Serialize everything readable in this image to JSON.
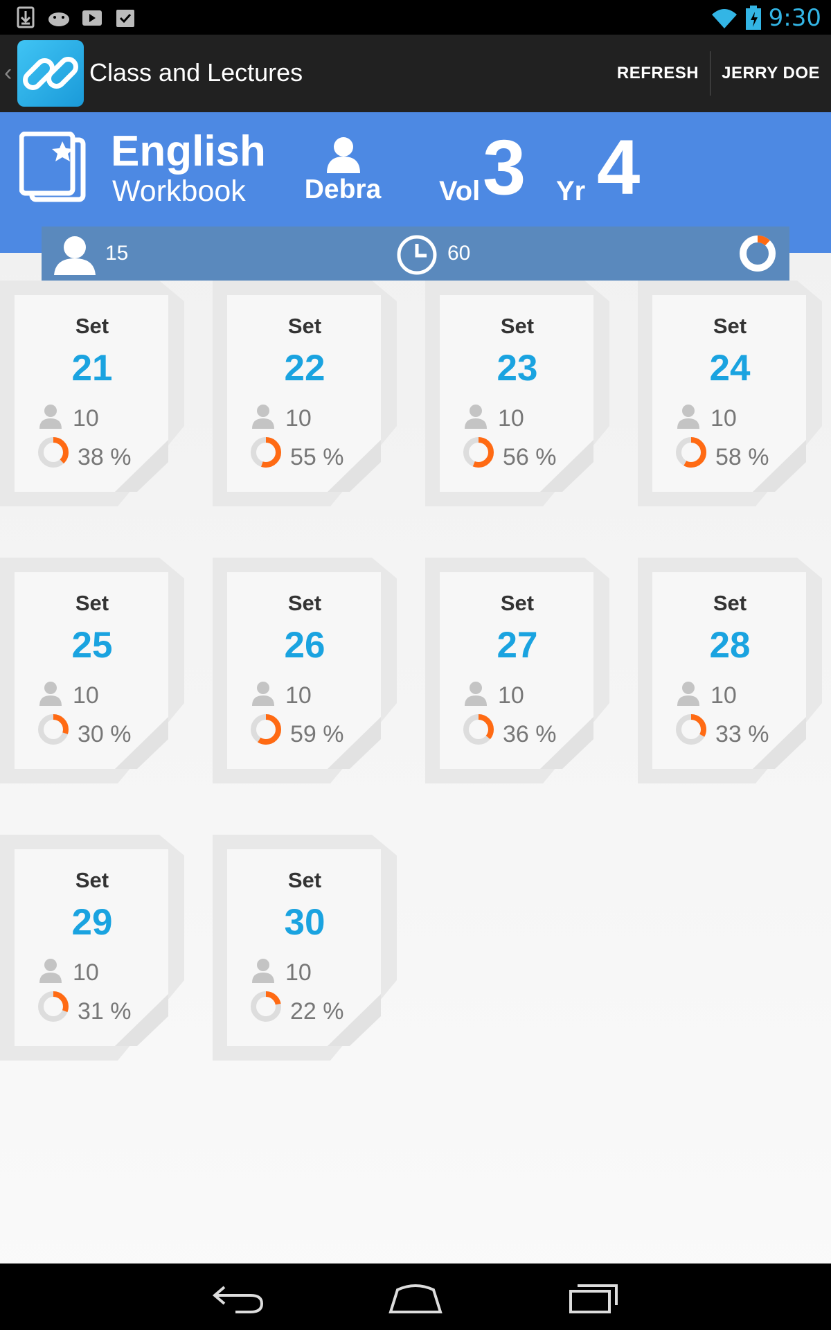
{
  "status_bar": {
    "left_icons": [
      "download-icon",
      "android-icon",
      "play-store-icon",
      "clipboard-check-icon"
    ],
    "right_icons": [
      "wifi-icon",
      "battery-charging-icon"
    ],
    "time": "9:30",
    "accent_color": "#33b5e5"
  },
  "action_bar": {
    "title": "Class and Lectures",
    "app_icon": "link-chain-icon",
    "refresh_label": "REFRESH",
    "user_label": "JERRY DOE"
  },
  "header": {
    "subject": "English",
    "subtitle": "Workbook",
    "teacher": "Debra",
    "vol_label": "Vol",
    "vol_value": "3",
    "yr_label": "Yr",
    "yr_value": "4",
    "background_color": "#4d89e3"
  },
  "info_bar": {
    "students": "15",
    "time": "60",
    "progress_fraction": 0.12
  },
  "sets": [
    {
      "label": "Set",
      "number": "21",
      "students": "10",
      "percent": "38 %",
      "fraction": 0.38
    },
    {
      "label": "Set",
      "number": "22",
      "students": "10",
      "percent": "55 %",
      "fraction": 0.55
    },
    {
      "label": "Set",
      "number": "23",
      "students": "10",
      "percent": "56 %",
      "fraction": 0.56
    },
    {
      "label": "Set",
      "number": "24",
      "students": "10",
      "percent": "58 %",
      "fraction": 0.58
    },
    {
      "label": "Set",
      "number": "25",
      "students": "10",
      "percent": "30 %",
      "fraction": 0.3
    },
    {
      "label": "Set",
      "number": "26",
      "students": "10",
      "percent": "59 %",
      "fraction": 0.59
    },
    {
      "label": "Set",
      "number": "27",
      "students": "10",
      "percent": "36 %",
      "fraction": 0.36
    },
    {
      "label": "Set",
      "number": "28",
      "students": "10",
      "percent": "33 %",
      "fraction": 0.33
    },
    {
      "label": "Set",
      "number": "29",
      "students": "10",
      "percent": "31 %",
      "fraction": 0.31
    },
    {
      "label": "Set",
      "number": "30",
      "students": "10",
      "percent": "22 %",
      "fraction": 0.22
    }
  ],
  "colors": {
    "set_number": "#1aa3e0",
    "progress": "#ff6a13",
    "progress_track": "#dddddd"
  },
  "nav_bar": {
    "buttons": [
      "back-icon",
      "home-icon",
      "recent-apps-icon"
    ]
  }
}
